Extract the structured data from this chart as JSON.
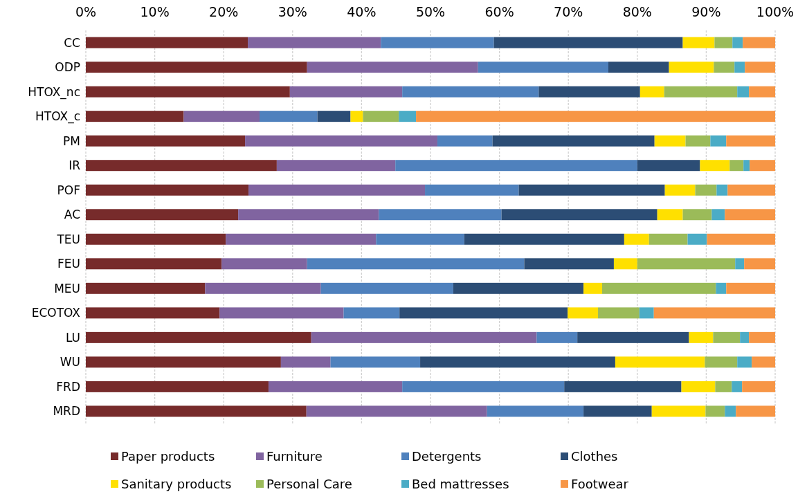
{
  "chart_data": {
    "type": "bar",
    "orientation": "horizontal",
    "stacked": true,
    "categories": [
      "CC",
      "ODP",
      "HTOX_nc",
      "HTOX_c",
      "PM",
      "IR",
      "POF",
      "AC",
      "TEU",
      "FEU",
      "MEU",
      "ECOTOX",
      "LU",
      "WU",
      "FRD",
      "MRD"
    ],
    "series": [
      {
        "name": "Paper products",
        "color": "#772b2b",
        "values": [
          23.5,
          32.1,
          29.6,
          14.2,
          23.1,
          27.7,
          23.6,
          22.1,
          20.3,
          19.7,
          17.3,
          19.4,
          32.7,
          28.3,
          26.5,
          32.0
        ]
      },
      {
        "name": "Furniture",
        "color": "#8064a0",
        "values": [
          19.3,
          24.8,
          16.3,
          11.0,
          27.9,
          17.2,
          25.6,
          20.4,
          21.8,
          12.4,
          16.8,
          18.0,
          32.7,
          7.2,
          19.4,
          26.2
        ]
      },
      {
        "name": "Detergents",
        "color": "#4f81bd",
        "values": [
          16.4,
          18.9,
          19.8,
          8.4,
          8.0,
          35.1,
          13.6,
          17.8,
          12.8,
          31.5,
          19.2,
          8.1,
          5.9,
          13.0,
          23.5,
          14.0
        ]
      },
      {
        "name": "Clothes",
        "color": "#2c4d75",
        "values": [
          27.4,
          8.8,
          14.7,
          4.8,
          23.5,
          9.1,
          21.2,
          22.6,
          23.2,
          13.0,
          18.9,
          24.4,
          16.2,
          28.3,
          17.0,
          9.9
        ]
      },
      {
        "name": "Sanitary products",
        "color": "#ffe000",
        "values": [
          4.6,
          6.5,
          3.5,
          1.8,
          4.5,
          4.3,
          4.4,
          3.7,
          3.6,
          3.4,
          2.7,
          4.4,
          3.5,
          13.0,
          4.9,
          7.8
        ]
      },
      {
        "name": "Personal Care",
        "color": "#9bbb59",
        "values": [
          2.6,
          3.0,
          10.6,
          5.2,
          3.6,
          2.0,
          3.1,
          4.2,
          5.6,
          14.2,
          16.5,
          6.0,
          3.9,
          4.7,
          2.4,
          2.8
        ]
      },
      {
        "name": "Bed mattresses",
        "color": "#4bacc6",
        "values": [
          1.5,
          1.5,
          1.7,
          2.5,
          2.3,
          0.9,
          1.6,
          1.9,
          2.8,
          1.3,
          1.5,
          2.1,
          1.3,
          2.1,
          1.5,
          1.6
        ]
      },
      {
        "name": "Footwear",
        "color": "#f79646",
        "values": [
          4.7,
          4.4,
          3.8,
          52.1,
          7.1,
          3.7,
          6.9,
          7.3,
          9.9,
          4.5,
          7.1,
          17.6,
          3.8,
          3.4,
          4.8,
          5.7
        ]
      }
    ],
    "xlim": [
      0,
      100
    ],
    "xticks": [
      {
        "value": 0,
        "label": "0%"
      },
      {
        "value": 10,
        "label": "10%"
      },
      {
        "value": 20,
        "label": "20%"
      },
      {
        "value": 30,
        "label": "30%"
      },
      {
        "value": 40,
        "label": "40%"
      },
      {
        "value": 50,
        "label": "50%"
      },
      {
        "value": 60,
        "label": "60%"
      },
      {
        "value": 70,
        "label": "70%"
      },
      {
        "value": 80,
        "label": "80%"
      },
      {
        "value": 90,
        "label": "90%"
      },
      {
        "value": 100,
        "label": "100%"
      }
    ],
    "grid": "x",
    "legend": "bottom"
  }
}
